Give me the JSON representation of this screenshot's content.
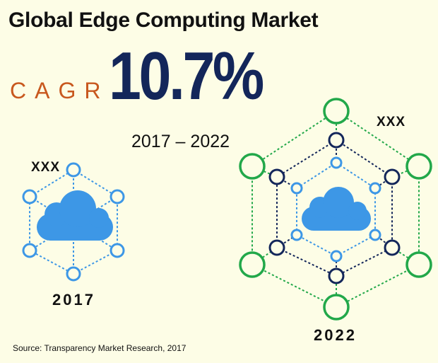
{
  "title": "Global Edge Computing Market",
  "cagr_label": "CAGR",
  "cagr_value": "10.7%",
  "period": "2017 – 2022",
  "source": "Source: Transparency  Market  Research,  2017",
  "colors": {
    "background": "#fdfde6",
    "navy": "#13265a",
    "orange": "#c8581e",
    "blue": "#3d97e6",
    "green": "#22a84a"
  },
  "chart_data": {
    "type": "infographic",
    "title": "Global Edge Computing Market",
    "cagr": "10.7%",
    "period": "2017 – 2022",
    "categories": [
      "2017",
      "2022"
    ],
    "value_labels": [
      "XXX",
      "XXX"
    ]
  }
}
